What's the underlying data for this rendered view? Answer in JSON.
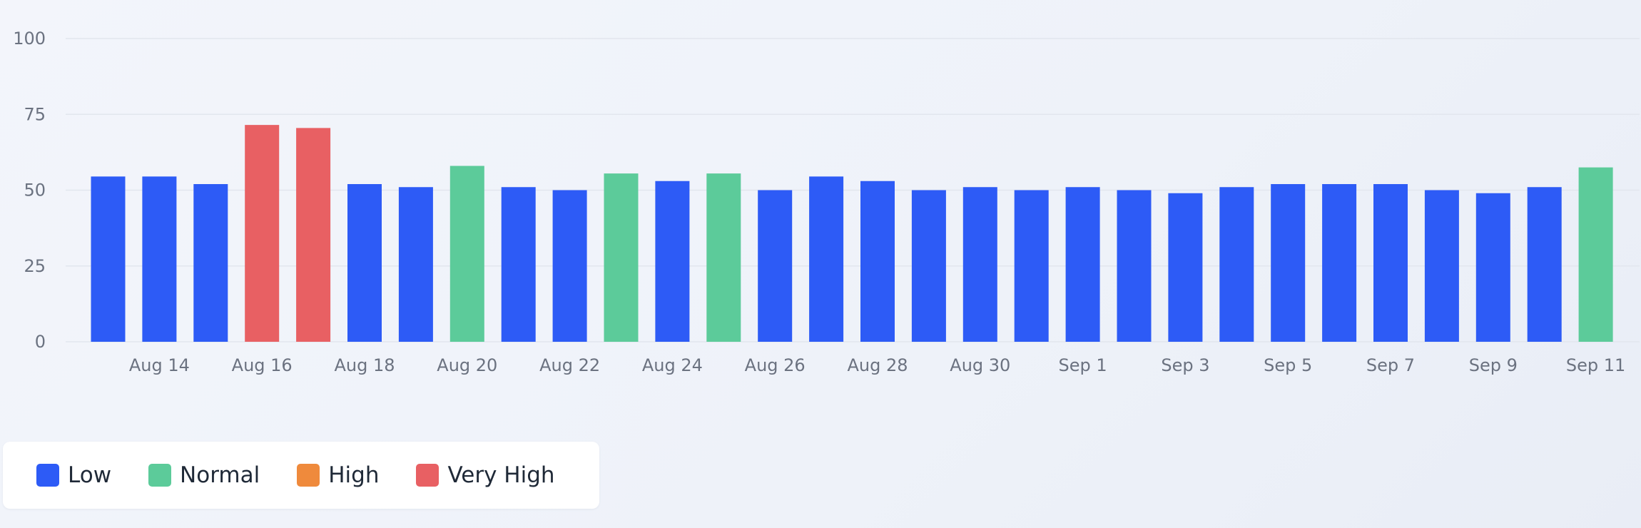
{
  "colors": {
    "low": "#2d5bf6",
    "normal": "#5ccb9a",
    "high": "#ef8a3c",
    "very_high": "#e86063",
    "grid": "#e2e6ee",
    "tick": "#6b7280"
  },
  "legend": {
    "items": [
      {
        "label": "Low",
        "color": "#2d5bf6"
      },
      {
        "label": "Normal",
        "color": "#5ccb9a"
      },
      {
        "label": "High",
        "color": "#ef8a3c"
      },
      {
        "label": "Very High",
        "color": "#e86063"
      }
    ]
  },
  "chart_data": {
    "type": "bar",
    "title": "",
    "xlabel": "",
    "ylabel": "",
    "ylim": [
      0,
      100
    ],
    "yticks": [
      0,
      25,
      50,
      75,
      100
    ],
    "grid": true,
    "legend_position": "bottom-left",
    "x_tick_labels": [
      "Aug 14",
      "Aug 16",
      "Aug 18",
      "Aug 20",
      "Aug 22",
      "Aug 24",
      "Aug 26",
      "Aug 28",
      "Aug 30",
      "Sep 1",
      "Sep 3",
      "Sep 5",
      "Sep 7",
      "Sep 9",
      "Sep 11"
    ],
    "categories": [
      "Aug 13",
      "Aug 14",
      "Aug 15",
      "Aug 16",
      "Aug 17",
      "Aug 18",
      "Aug 19",
      "Aug 20",
      "Aug 21",
      "Aug 22",
      "Aug 23",
      "Aug 24",
      "Aug 25",
      "Aug 26",
      "Aug 27",
      "Aug 28",
      "Aug 29",
      "Aug 30",
      "Aug 31",
      "Sep 1",
      "Sep 2",
      "Sep 3",
      "Sep 4",
      "Sep 5",
      "Sep 6",
      "Sep 7",
      "Sep 8",
      "Sep 9",
      "Sep 10",
      "Sep 11"
    ],
    "values": [
      54.5,
      54.5,
      52,
      71.5,
      70.5,
      52,
      51,
      58,
      51,
      50,
      55.5,
      53,
      55.5,
      50,
      54.5,
      53,
      50,
      51,
      50,
      51,
      50,
      49,
      51,
      52,
      52,
      52,
      50,
      49,
      51,
      57.5
    ],
    "levels": [
      "Low",
      "Low",
      "Low",
      "Very High",
      "Very High",
      "Low",
      "Low",
      "Normal",
      "Low",
      "Low",
      "Normal",
      "Low",
      "Normal",
      "Low",
      "Low",
      "Low",
      "Low",
      "Low",
      "Low",
      "Low",
      "Low",
      "Low",
      "Low",
      "Low",
      "Low",
      "Low",
      "Low",
      "Low",
      "Low",
      "Normal"
    ]
  }
}
